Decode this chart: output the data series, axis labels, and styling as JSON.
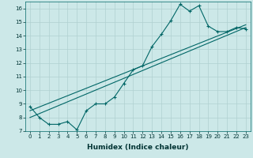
{
  "xlabel": "Humidex (Indice chaleur)",
  "ylabel": "",
  "xlim": [
    -0.5,
    23.5
  ],
  "ylim": [
    7,
    16.5
  ],
  "bg_color": "#cce8e8",
  "grid_color": "#b0d0d0",
  "line_color": "#006666",
  "line1_x": [
    0,
    1,
    2,
    3,
    4,
    5,
    6,
    7,
    8,
    9,
    10,
    11,
    12,
    13,
    14,
    15,
    16,
    17,
    18,
    19,
    20,
    21,
    22,
    23
  ],
  "line1_y": [
    8.8,
    8.0,
    7.5,
    7.5,
    7.7,
    7.1,
    8.5,
    9.0,
    9.0,
    9.5,
    10.5,
    11.5,
    11.8,
    13.2,
    14.1,
    15.1,
    16.3,
    15.8,
    16.2,
    14.7,
    14.3,
    14.3,
    14.6,
    14.5
  ],
  "line2_x": [
    0,
    23
  ],
  "line2_y": [
    8.0,
    14.6
  ],
  "line3_x": [
    0,
    23
  ],
  "line3_y": [
    8.5,
    14.8
  ],
  "yticks": [
    7,
    8,
    9,
    10,
    11,
    12,
    13,
    14,
    15,
    16
  ],
  "xticks": [
    0,
    1,
    2,
    3,
    4,
    5,
    6,
    7,
    8,
    9,
    10,
    11,
    12,
    13,
    14,
    15,
    16,
    17,
    18,
    19,
    20,
    21,
    22,
    23
  ],
  "marker": "+",
  "markersize": 3,
  "linewidth": 0.8,
  "tick_fontsize": 5,
  "label_fontsize": 6.5
}
